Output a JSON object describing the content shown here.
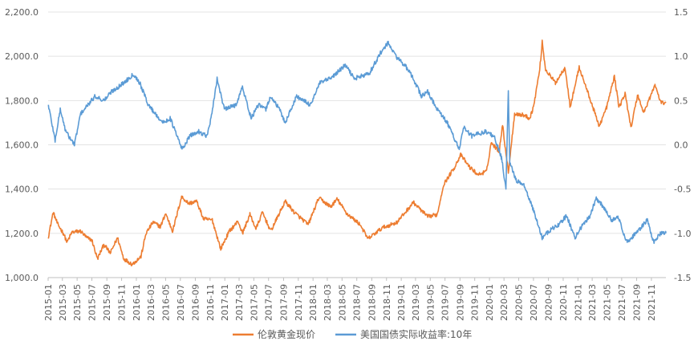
{
  "chart_data": {
    "type": "line",
    "title": "",
    "grid": true,
    "legend_position": "bottom",
    "left_axis": {
      "range": [
        1000,
        2200
      ],
      "ticks": [
        "1,000.0",
        "1,200.0",
        "1,400.0",
        "1,600.0",
        "1,800.0",
        "2,000.0",
        "2,200.0"
      ]
    },
    "right_axis": {
      "range": [
        -1.5,
        1.5
      ],
      "ticks": [
        "-1.5",
        "-1.0",
        "-0.5",
        "0.0",
        "0.5",
        "1.0",
        "1.5"
      ]
    },
    "x_ticks": [
      "2015-01",
      "2015-03",
      "2015-05",
      "2015-07",
      "2015-09",
      "2015-11",
      "2016-01",
      "2016-03",
      "2016-05",
      "2016-07",
      "2016-09",
      "2016-11",
      "2017-01",
      "2017-03",
      "2017-05",
      "2017-07",
      "2017-09",
      "2017-11",
      "2018-01",
      "2018-03",
      "2018-05",
      "2018-07",
      "2018-09",
      "2018-11",
      "2019-01",
      "2019-03",
      "2019-05",
      "2019-07",
      "2019-09",
      "2019-11",
      "2020-01",
      "2020-03",
      "2020-05",
      "2020-07",
      "2020-09",
      "2020-11",
      "2021-01",
      "2021-03",
      "2021-05",
      "2021-07",
      "2021-09",
      "2021-11"
    ],
    "series": [
      {
        "name": "伦敦黄金现价",
        "axis": "left",
        "color": "#ED7D31",
        "points": [
          [
            "2015-01-02",
            1185
          ],
          [
            "2015-01-22",
            1295
          ],
          [
            "2015-02-10",
            1240
          ],
          [
            "2015-03-05",
            1200
          ],
          [
            "2015-03-20",
            1160
          ],
          [
            "2015-04-10",
            1205
          ],
          [
            "2015-05-15",
            1210
          ],
          [
            "2015-06-10",
            1180
          ],
          [
            "2015-07-01",
            1170
          ],
          [
            "2015-07-24",
            1085
          ],
          [
            "2015-08-20",
            1150
          ],
          [
            "2015-09-15",
            1110
          ],
          [
            "2015-10-15",
            1180
          ],
          [
            "2015-11-10",
            1085
          ],
          [
            "2015-12-15",
            1060
          ],
          [
            "2016-01-20",
            1095
          ],
          [
            "2016-02-10",
            1200
          ],
          [
            "2016-03-10",
            1250
          ],
          [
            "2016-04-10",
            1230
          ],
          [
            "2016-05-01",
            1290
          ],
          [
            "2016-05-30",
            1210
          ],
          [
            "2016-07-06",
            1365
          ],
          [
            "2016-08-05",
            1335
          ],
          [
            "2016-09-06",
            1345
          ],
          [
            "2016-10-05",
            1265
          ],
          [
            "2016-11-10",
            1260
          ],
          [
            "2016-12-15",
            1130
          ],
          [
            "2017-01-20",
            1210
          ],
          [
            "2017-02-25",
            1255
          ],
          [
            "2017-03-15",
            1200
          ],
          [
            "2017-04-15",
            1285
          ],
          [
            "2017-05-10",
            1220
          ],
          [
            "2017-06-06",
            1295
          ],
          [
            "2017-07-10",
            1210
          ],
          [
            "2017-09-08",
            1345
          ],
          [
            "2017-10-15",
            1295
          ],
          [
            "2017-12-12",
            1240
          ],
          [
            "2018-01-25",
            1360
          ],
          [
            "2018-03-15",
            1320
          ],
          [
            "2018-04-11",
            1355
          ],
          [
            "2018-05-20",
            1290
          ],
          [
            "2018-07-15",
            1240
          ],
          [
            "2018-08-16",
            1175
          ],
          [
            "2018-10-15",
            1225
          ],
          [
            "2018-12-15",
            1250
          ],
          [
            "2019-02-20",
            1340
          ],
          [
            "2019-04-20",
            1275
          ],
          [
            "2019-05-30",
            1285
          ],
          [
            "2019-06-25",
            1420
          ],
          [
            "2019-08-10",
            1500
          ],
          [
            "2019-09-04",
            1555
          ],
          [
            "2019-10-10",
            1500
          ],
          [
            "2019-11-15",
            1465
          ],
          [
            "2019-12-20",
            1480
          ],
          [
            "2020-01-08",
            1610
          ],
          [
            "2020-02-10",
            1570
          ],
          [
            "2020-02-24",
            1690
          ],
          [
            "2020-03-19",
            1475
          ],
          [
            "2020-04-14",
            1740
          ],
          [
            "2020-05-20",
            1735
          ],
          [
            "2020-06-15",
            1720
          ],
          [
            "2020-07-01",
            1770
          ],
          [
            "2020-07-27",
            1940
          ],
          [
            "2020-08-06",
            2065
          ],
          [
            "2020-08-20",
            1940
          ],
          [
            "2020-09-30",
            1880
          ],
          [
            "2020-11-09",
            1950
          ],
          [
            "2020-11-30",
            1770
          ],
          [
            "2021-01-06",
            1950
          ],
          [
            "2021-02-10",
            1840
          ],
          [
            "2021-03-30",
            1685
          ],
          [
            "2021-04-30",
            1770
          ],
          [
            "2021-06-01",
            1910
          ],
          [
            "2021-06-20",
            1770
          ],
          [
            "2021-07-15",
            1830
          ],
          [
            "2021-08-09",
            1680
          ],
          [
            "2021-09-05",
            1825
          ],
          [
            "2021-09-30",
            1745
          ],
          [
            "2021-11-16",
            1870
          ],
          [
            "2021-12-10",
            1790
          ],
          [
            "2021-12-31",
            1790
          ]
        ]
      },
      {
        "name": "美国国债实际收益率:10年",
        "axis": "right",
        "color": "#5B9BD5",
        "points": [
          [
            "2015-01-02",
            0.45
          ],
          [
            "2015-01-30",
            0.05
          ],
          [
            "2015-02-20",
            0.4
          ],
          [
            "2015-03-15",
            0.15
          ],
          [
            "2015-04-20",
            0.0
          ],
          [
            "2015-05-15",
            0.35
          ],
          [
            "2015-06-15",
            0.45
          ],
          [
            "2015-07-15",
            0.55
          ],
          [
            "2015-08-20",
            0.5
          ],
          [
            "2015-09-20",
            0.6
          ],
          [
            "2015-11-10",
            0.7
          ],
          [
            "2015-12-20",
            0.8
          ],
          [
            "2016-01-15",
            0.7
          ],
          [
            "2016-02-20",
            0.45
          ],
          [
            "2016-03-20",
            0.35
          ],
          [
            "2016-04-20",
            0.25
          ],
          [
            "2016-05-20",
            0.3
          ],
          [
            "2016-06-10",
            0.15
          ],
          [
            "2016-07-08",
            -0.05
          ],
          [
            "2016-08-10",
            0.1
          ],
          [
            "2016-09-15",
            0.15
          ],
          [
            "2016-10-20",
            0.1
          ],
          [
            "2016-11-09",
            0.35
          ],
          [
            "2016-11-30",
            0.75
          ],
          [
            "2016-12-30",
            0.4
          ],
          [
            "2017-02-15",
            0.45
          ],
          [
            "2017-03-15",
            0.65
          ],
          [
            "2017-04-20",
            0.3
          ],
          [
            "2017-05-20",
            0.45
          ],
          [
            "2017-06-20",
            0.4
          ],
          [
            "2017-07-10",
            0.55
          ],
          [
            "2017-08-15",
            0.4
          ],
          [
            "2017-09-08",
            0.25
          ],
          [
            "2017-10-25",
            0.55
          ],
          [
            "2017-12-20",
            0.45
          ],
          [
            "2018-01-30",
            0.7
          ],
          [
            "2018-03-15",
            0.75
          ],
          [
            "2018-05-15",
            0.9
          ],
          [
            "2018-06-20",
            0.75
          ],
          [
            "2018-08-20",
            0.8
          ],
          [
            "2018-10-10",
            1.05
          ],
          [
            "2018-11-08",
            1.15
          ],
          [
            "2018-12-10",
            1.0
          ],
          [
            "2019-01-15",
            0.9
          ],
          [
            "2019-02-20",
            0.75
          ],
          [
            "2019-03-25",
            0.55
          ],
          [
            "2019-04-20",
            0.6
          ],
          [
            "2019-05-30",
            0.4
          ],
          [
            "2019-07-10",
            0.25
          ],
          [
            "2019-08-30",
            -0.05
          ],
          [
            "2019-09-15",
            0.2
          ],
          [
            "2019-10-20",
            0.1
          ],
          [
            "2019-12-15",
            0.15
          ],
          [
            "2020-01-20",
            0.1
          ],
          [
            "2020-02-20",
            -0.15
          ],
          [
            "2020-03-09",
            -0.5
          ],
          [
            "2020-03-19",
            0.6
          ],
          [
            "2020-03-25",
            -0.2
          ],
          [
            "2020-04-20",
            -0.4
          ],
          [
            "2020-05-20",
            -0.45
          ],
          [
            "2020-06-20",
            -0.65
          ],
          [
            "2020-07-20",
            -0.9
          ],
          [
            "2020-08-06",
            -1.05
          ],
          [
            "2020-09-15",
            -0.95
          ],
          [
            "2020-10-15",
            -0.9
          ],
          [
            "2020-11-15",
            -0.8
          ],
          [
            "2020-12-20",
            -1.05
          ],
          [
            "2021-01-10",
            -0.95
          ],
          [
            "2021-02-20",
            -0.8
          ],
          [
            "2021-03-18",
            -0.6
          ],
          [
            "2021-04-15",
            -0.7
          ],
          [
            "2021-05-20",
            -0.85
          ],
          [
            "2021-06-15",
            -0.8
          ],
          [
            "2021-07-20",
            -1.1
          ],
          [
            "2021-08-10",
            -1.05
          ],
          [
            "2021-09-15",
            -0.95
          ],
          [
            "2021-10-15",
            -0.85
          ],
          [
            "2021-11-10",
            -1.1
          ],
          [
            "2021-12-10",
            -1.0
          ],
          [
            "2021-12-31",
            -1.0
          ]
        ]
      }
    ]
  }
}
